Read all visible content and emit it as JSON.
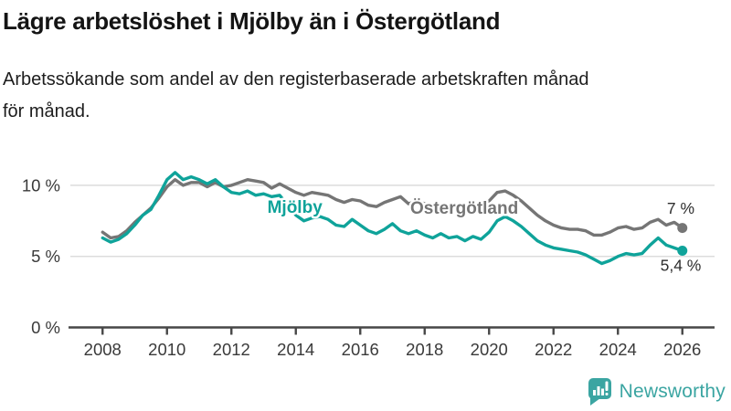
{
  "header": {
    "title": "Lägre arbetslöshet i Mjölby än i Östergötland",
    "subtitle": "Arbetssökande som andel av den registerbaserade arbetskraften månad\nför månad."
  },
  "footer": {
    "brand": "Newsworthy"
  },
  "colors": {
    "mjolby": "#0fa39a",
    "ostergotland": "#757575",
    "axis": "#474747",
    "grid": "#dcdcdc",
    "tick_label": "#3a3a3a",
    "end_label": "#2e2e2e",
    "brand_teal": "#3ba5a2"
  },
  "chart_data": {
    "type": "line",
    "title": "Lägre arbetslöshet i Mjölby än i Östergötland",
    "subtitle": "Arbetssökande som andel av den registerbaserade arbetskraften månad för månad.",
    "unit": "%",
    "grid": "horizontal",
    "legend_position": "inline-labels",
    "x_start": 2008.0,
    "x_step": 0.25,
    "xlim": [
      2007,
      2027
    ],
    "ylim": [
      0,
      12.5
    ],
    "x_ticks": [
      2008,
      2010,
      2012,
      2014,
      2016,
      2018,
      2020,
      2022,
      2024,
      2026
    ],
    "y_ticks": [
      0,
      5,
      10
    ],
    "y_tick_suffix": " %",
    "series": [
      {
        "name": "Mjölby",
        "color": "#0fa39a",
        "end_value": 5.4,
        "label": {
          "x": 2013.97,
          "y": 8.05
        },
        "end_label": {
          "text": "5,4 %",
          "x": 2025.95,
          "y": 4.0
        },
        "values": [
          6.3,
          6.0,
          6.2,
          6.6,
          7.2,
          7.9,
          8.3,
          9.3,
          10.4,
          10.9,
          10.4,
          10.6,
          10.4,
          10.1,
          10.4,
          9.9,
          9.5,
          9.4,
          9.6,
          9.3,
          9.4,
          9.2,
          9.3,
          8.6,
          7.9,
          7.5,
          7.7,
          7.8,
          7.6,
          7.2,
          7.1,
          7.6,
          7.2,
          6.8,
          6.6,
          6.9,
          7.3,
          6.8,
          6.6,
          6.8,
          6.5,
          6.3,
          6.6,
          6.3,
          6.4,
          6.1,
          6.4,
          6.2,
          6.7,
          7.5,
          7.8,
          7.5,
          7.1,
          6.6,
          6.1,
          5.8,
          5.6,
          5.5,
          5.4,
          5.3,
          5.1,
          4.8,
          4.5,
          4.7,
          5.0,
          5.2,
          5.1,
          5.2,
          5.8,
          6.3,
          5.8,
          5.6,
          5.4
        ]
      },
      {
        "name": "Östergötland",
        "color": "#757575",
        "end_value": 7.0,
        "label": {
          "x": 2019.23,
          "y": 8.0
        },
        "end_label": {
          "text": "7 %",
          "x": 2025.95,
          "y": 8.0
        },
        "values": [
          6.7,
          6.3,
          6.4,
          6.8,
          7.4,
          7.9,
          8.4,
          9.1,
          9.9,
          10.4,
          10.0,
          10.2,
          10.2,
          9.9,
          10.2,
          9.9,
          10.0,
          10.2,
          10.4,
          10.3,
          10.2,
          9.8,
          10.1,
          9.8,
          9.5,
          9.3,
          9.5,
          9.4,
          9.3,
          9.0,
          8.8,
          9.0,
          8.9,
          8.6,
          8.5,
          8.8,
          9.0,
          9.2,
          8.7,
          8.9,
          8.7,
          8.5,
          8.6,
          8.4,
          8.3,
          8.2,
          8.3,
          8.5,
          8.9,
          9.5,
          9.6,
          9.3,
          8.9,
          8.4,
          7.9,
          7.5,
          7.2,
          7.0,
          6.9,
          6.9,
          6.8,
          6.5,
          6.5,
          6.7,
          7.0,
          7.1,
          6.9,
          7.0,
          7.4,
          7.6,
          7.2,
          7.4,
          7.0
        ]
      }
    ]
  }
}
